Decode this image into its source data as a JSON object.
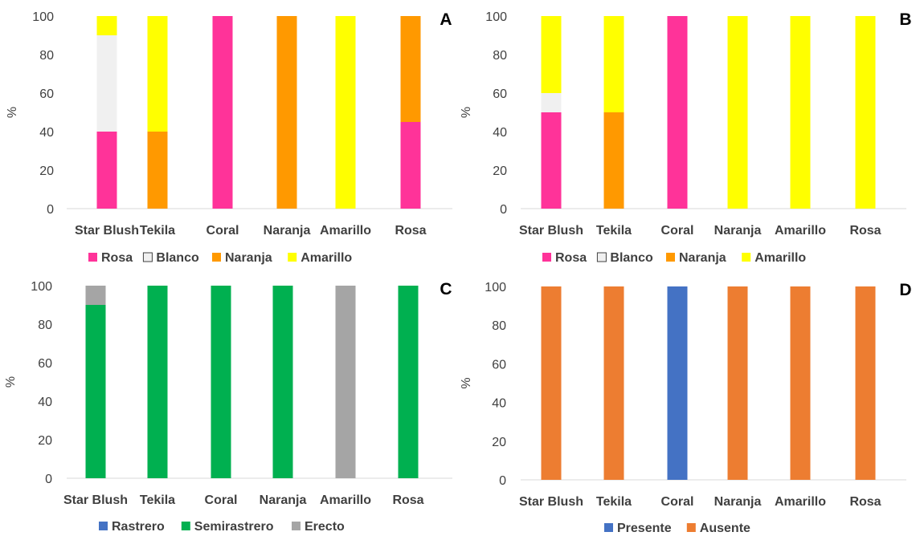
{
  "chart_data": [
    {
      "panel": "A",
      "type": "bar",
      "stacked": true,
      "categories": [
        "Star Blush",
        "Tekila",
        "Coral",
        "Naranja",
        "Amarillo",
        "Rosa"
      ],
      "ylabel": "%",
      "ylim": [
        0,
        100
      ],
      "yticks": [
        0,
        20,
        40,
        60,
        80,
        100
      ],
      "grid": false,
      "legend_position": "bottom",
      "series": [
        {
          "name": "Rosa",
          "color": "#FF3399",
          "values": [
            40,
            0,
            100,
            0,
            0,
            45
          ]
        },
        {
          "name": "Blanco",
          "color": "#F0F0F0",
          "values": [
            50,
            0,
            0,
            0,
            0,
            0
          ]
        },
        {
          "name": "Naranja",
          "color": "#FF9900",
          "values": [
            0,
            40,
            0,
            100,
            0,
            55
          ]
        },
        {
          "name": "Amarillo",
          "color": "#FFFF00",
          "values": [
            10,
            60,
            0,
            0,
            100,
            0
          ]
        }
      ]
    },
    {
      "panel": "B",
      "type": "bar",
      "stacked": true,
      "categories": [
        "Star Blush",
        "Tekila",
        "Coral",
        "Naranja",
        "Amarillo",
        "Rosa"
      ],
      "ylabel": "%",
      "ylim": [
        0,
        100
      ],
      "yticks": [
        0,
        20,
        40,
        60,
        80,
        100
      ],
      "grid": false,
      "legend_position": "bottom",
      "series": [
        {
          "name": "Rosa",
          "color": "#FF3399",
          "values": [
            50,
            0,
            100,
            0,
            0,
            0
          ]
        },
        {
          "name": "Blanco",
          "color": "#F0F0F0",
          "values": [
            10,
            0,
            0,
            0,
            0,
            0
          ]
        },
        {
          "name": "Naranja",
          "color": "#FF9900",
          "values": [
            0,
            50,
            0,
            0,
            0,
            0
          ]
        },
        {
          "name": "Amarillo",
          "color": "#FFFF00",
          "values": [
            40,
            50,
            0,
            100,
            100,
            100
          ]
        }
      ]
    },
    {
      "panel": "C",
      "type": "bar",
      "stacked": true,
      "categories": [
        "Star Blush",
        "Tekila",
        "Coral",
        "Naranja",
        "Amarillo",
        "Rosa"
      ],
      "ylabel": "%",
      "ylim": [
        0,
        100
      ],
      "yticks": [
        0,
        20,
        40,
        60,
        80,
        100
      ],
      "grid": false,
      "legend_position": "bottom",
      "series": [
        {
          "name": "Rastrero",
          "color": "#4472C4",
          "values": [
            0,
            0,
            0,
            0,
            0,
            0
          ]
        },
        {
          "name": "Semirastrero",
          "color": "#00B050",
          "values": [
            90,
            100,
            100,
            100,
            0,
            100
          ]
        },
        {
          "name": "Erecto",
          "color": "#A5A5A5",
          "values": [
            10,
            0,
            0,
            0,
            100,
            0
          ]
        }
      ]
    },
    {
      "panel": "D",
      "type": "bar",
      "stacked": true,
      "categories": [
        "Star Blush",
        "Tekila",
        "Coral",
        "Naranja",
        "Amarillo",
        "Rosa"
      ],
      "ylabel": "%",
      "ylim": [
        0,
        100
      ],
      "yticks": [
        0,
        20,
        40,
        60,
        80,
        100
      ],
      "grid": false,
      "legend_position": "bottom",
      "series": [
        {
          "name": "Presente",
          "color": "#4472C4",
          "values": [
            0,
            0,
            100,
            0,
            0,
            0
          ]
        },
        {
          "name": "Ausente",
          "color": "#ED7D31",
          "values": [
            100,
            100,
            0,
            100,
            100,
            100
          ]
        }
      ]
    }
  ]
}
